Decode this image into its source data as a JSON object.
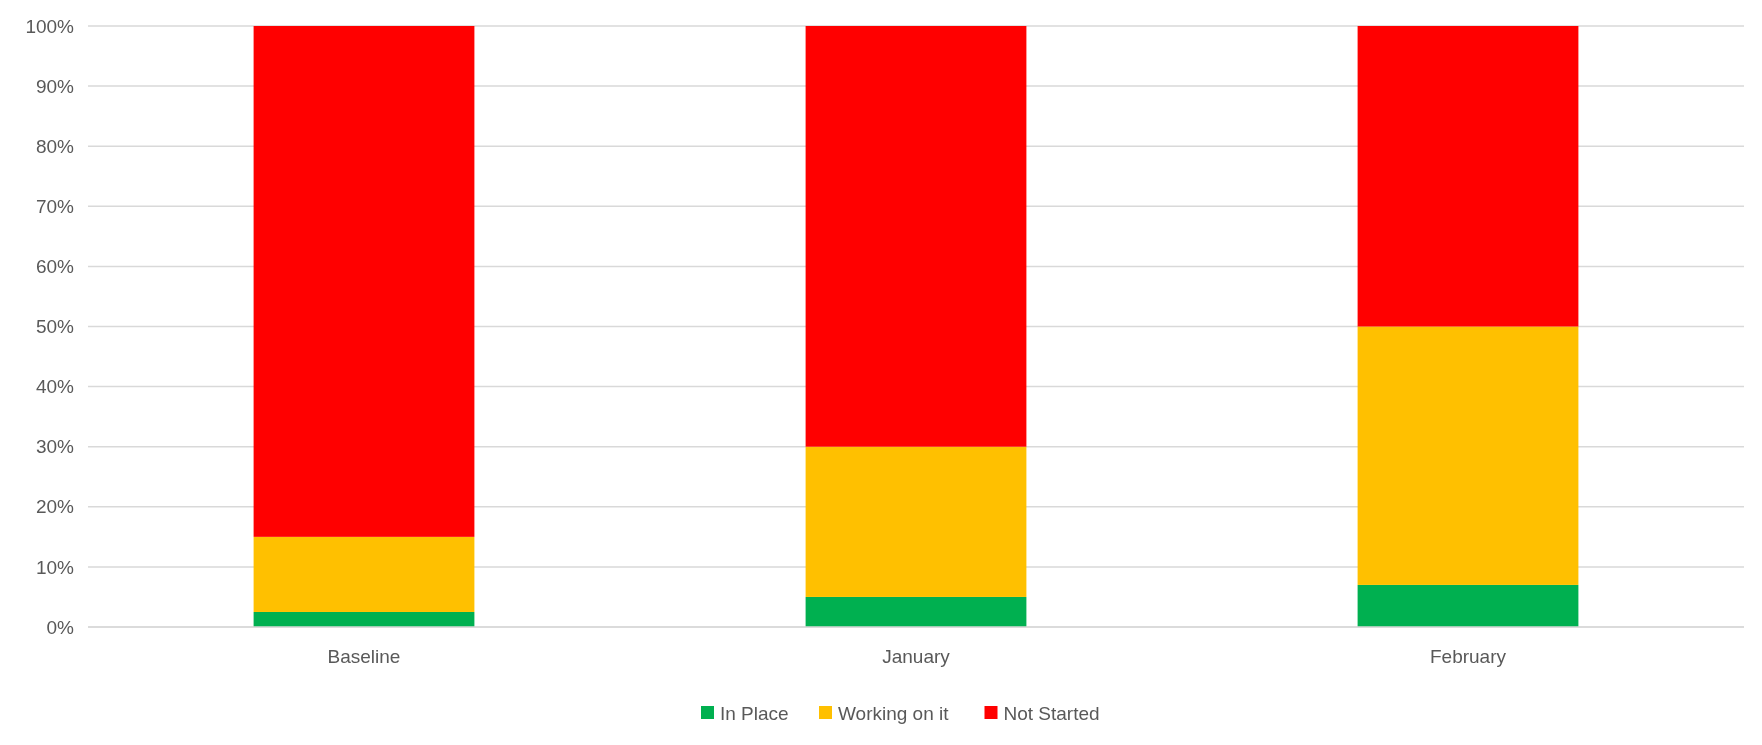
{
  "chart_data": {
    "type": "bar",
    "stacked": true,
    "categories": [
      "Baseline",
      "January",
      "February"
    ],
    "series": [
      {
        "name": "In Place",
        "color": "#00b050",
        "values": [
          2.5,
          5,
          7
        ]
      },
      {
        "name": "Working on it",
        "color": "#ffc000",
        "values": [
          12.5,
          25,
          43
        ]
      },
      {
        "name": "Not Started",
        "color": "#ff0000",
        "values": [
          85,
          70,
          50
        ]
      }
    ],
    "ylim": [
      0,
      100
    ],
    "yticks": [
      {
        "value": 0,
        "label": "0%"
      },
      {
        "value": 10,
        "label": "10%"
      },
      {
        "value": 20,
        "label": "20%"
      },
      {
        "value": 30,
        "label": "30%"
      },
      {
        "value": 40,
        "label": "40%"
      },
      {
        "value": 50,
        "label": "50%"
      },
      {
        "value": 60,
        "label": "60%"
      },
      {
        "value": 70,
        "label": "70%"
      },
      {
        "value": 80,
        "label": "80%"
      },
      {
        "value": 90,
        "label": "90%"
      },
      {
        "value": 100,
        "label": "100%"
      }
    ],
    "grid": "y",
    "legend": "bottom"
  }
}
